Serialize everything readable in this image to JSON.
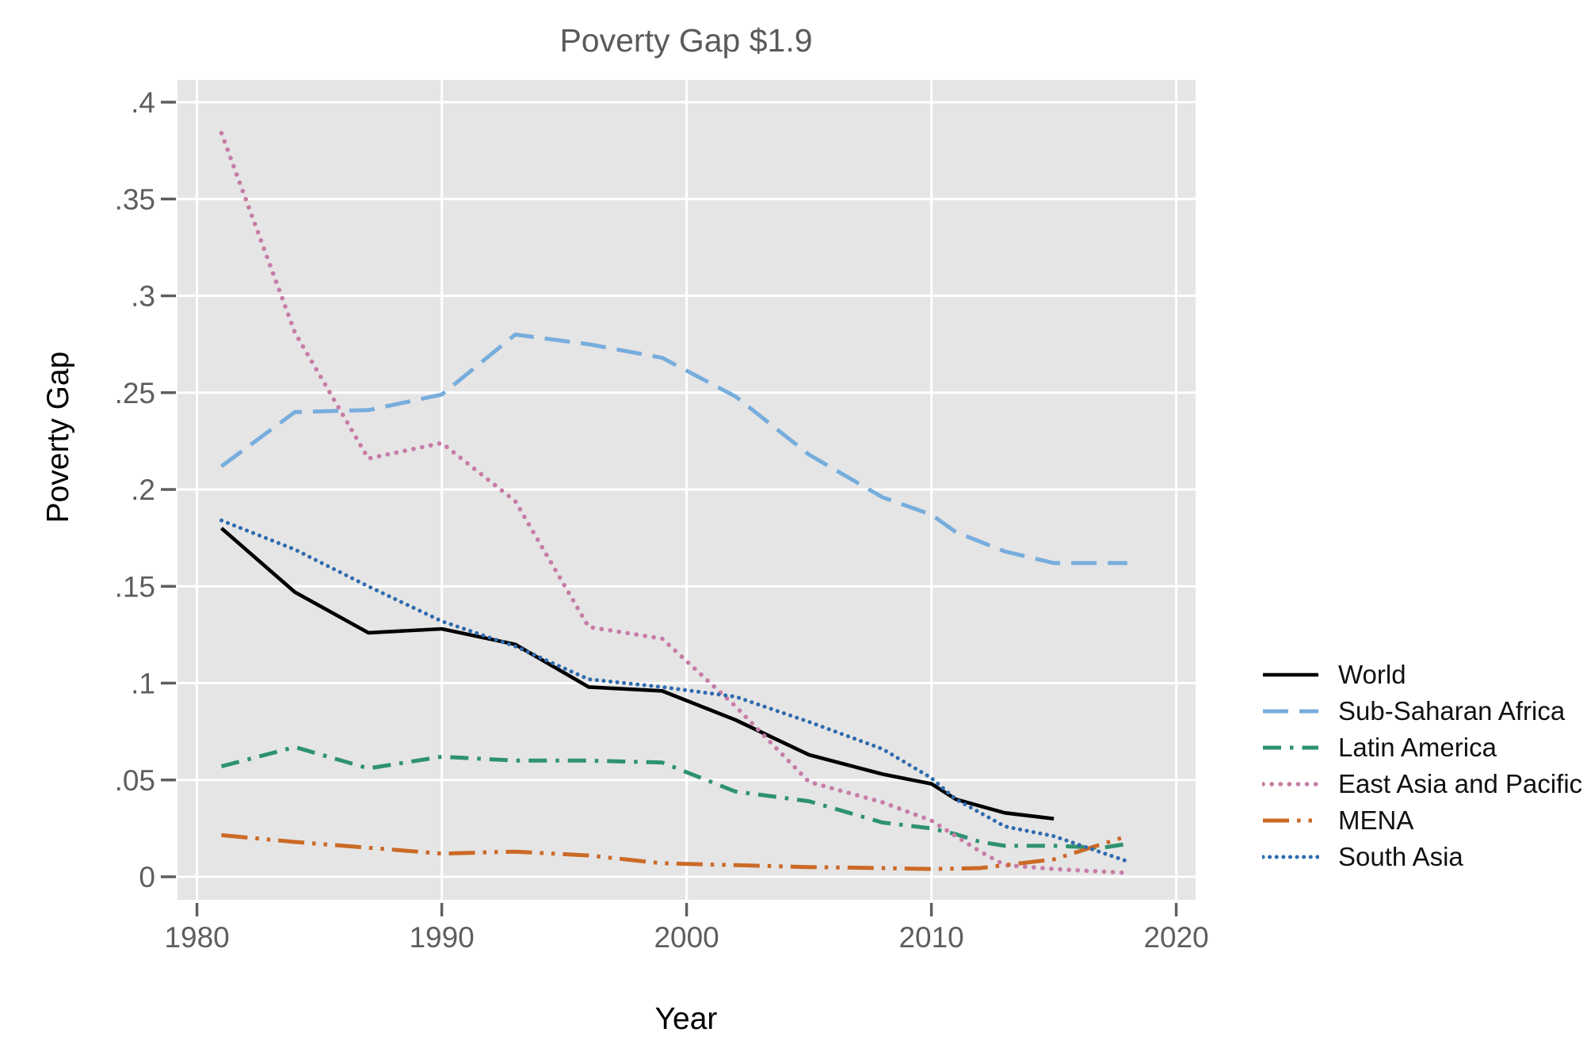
{
  "chart_data": {
    "type": "line",
    "title": "Poverty Gap $1.9",
    "xlabel": "Year",
    "ylabel": "Poverty Gap",
    "grid": true,
    "legend_position": "right-outside",
    "plot_background_color": "#e5e5e5",
    "gridline_color": "#ffffff",
    "axis_text_color": "#5e5e5e",
    "xlim": [
      1979.2,
      2020.8
    ],
    "ylim": [
      -0.012,
      0.425
    ],
    "x_ticks": [
      {
        "v": 1980,
        "label": "1980"
      },
      {
        "v": 1990,
        "label": "1990"
      },
      {
        "v": 2000,
        "label": "2000"
      },
      {
        "v": 2010,
        "label": "2010"
      },
      {
        "v": 2020,
        "label": "2020"
      }
    ],
    "y_ticks": [
      {
        "v": 0,
        "label": "0"
      },
      {
        "v": 0.05,
        "label": ".05"
      },
      {
        "v": 0.1,
        "label": ".1"
      },
      {
        "v": 0.15,
        "label": ".15"
      },
      {
        "v": 0.2,
        "label": ".2"
      },
      {
        "v": 0.25,
        "label": ".25"
      },
      {
        "v": 0.3,
        "label": ".3"
      },
      {
        "v": 0.35,
        "label": ".35"
      },
      {
        "v": 0.4,
        "label": ".4"
      }
    ],
    "series": [
      {
        "name": "World",
        "color": "#000000",
        "style": "solid",
        "points": [
          [
            1981,
            0.18
          ],
          [
            1984,
            0.147
          ],
          [
            1987,
            0.126
          ],
          [
            1990,
            0.128
          ],
          [
            1993,
            0.12
          ],
          [
            1996,
            0.098
          ],
          [
            1999,
            0.096
          ],
          [
            2002,
            0.081
          ],
          [
            2005,
            0.063
          ],
          [
            2008,
            0.053
          ],
          [
            2010,
            0.048
          ],
          [
            2011,
            0.04
          ],
          [
            2013,
            0.033
          ],
          [
            2015,
            0.03
          ]
        ]
      },
      {
        "name": "Sub-Saharan Africa",
        "color": "#76addc",
        "style": "longdash",
        "points": [
          [
            1981,
            0.212
          ],
          [
            1984,
            0.24
          ],
          [
            1987,
            0.241
          ],
          [
            1990,
            0.249
          ],
          [
            1993,
            0.28
          ],
          [
            1996,
            0.275
          ],
          [
            1999,
            0.268
          ],
          [
            2002,
            0.248
          ],
          [
            2005,
            0.218
          ],
          [
            2008,
            0.196
          ],
          [
            2010,
            0.187
          ],
          [
            2011,
            0.178
          ],
          [
            2012,
            0.173
          ],
          [
            2013,
            0.168
          ],
          [
            2015,
            0.162
          ],
          [
            2018,
            0.162
          ]
        ]
      },
      {
        "name": "Latin America",
        "color": "#2d9270",
        "style": "dashdot",
        "points": [
          [
            1981,
            0.057
          ],
          [
            1984,
            0.067
          ],
          [
            1987,
            0.056
          ],
          [
            1990,
            0.062
          ],
          [
            1993,
            0.06
          ],
          [
            1996,
            0.06
          ],
          [
            1999,
            0.059
          ],
          [
            2002,
            0.044
          ],
          [
            2005,
            0.039
          ],
          [
            2008,
            0.028
          ],
          [
            2010,
            0.025
          ],
          [
            2011,
            0.022
          ],
          [
            2012,
            0.018
          ],
          [
            2013,
            0.016
          ],
          [
            2015,
            0.016
          ],
          [
            2017,
            0.015
          ],
          [
            2018,
            0.017
          ]
        ]
      },
      {
        "name": "East Asia and Pacific",
        "color": "#c77ca6",
        "style": "dot",
        "points": [
          [
            1981,
            0.384
          ],
          [
            1984,
            0.281
          ],
          [
            1987,
            0.216
          ],
          [
            1990,
            0.224
          ],
          [
            1993,
            0.194
          ],
          [
            1996,
            0.129
          ],
          [
            1999,
            0.123
          ],
          [
            2002,
            0.088
          ],
          [
            2005,
            0.049
          ],
          [
            2008,
            0.0385
          ],
          [
            2010,
            0.029
          ],
          [
            2011,
            0.021
          ],
          [
            2012,
            0.013
          ],
          [
            2013,
            0.006
          ],
          [
            2015,
            0.004
          ],
          [
            2018,
            0.002
          ]
        ]
      },
      {
        "name": "MENA",
        "color": "#cb6a27",
        "style": "dashdotdot",
        "points": [
          [
            1981,
            0.0215
          ],
          [
            1984,
            0.018
          ],
          [
            1987,
            0.015
          ],
          [
            1990,
            0.012
          ],
          [
            1993,
            0.013
          ],
          [
            1996,
            0.011
          ],
          [
            1999,
            0.007
          ],
          [
            2002,
            0.006
          ],
          [
            2005,
            0.005
          ],
          [
            2008,
            0.0045
          ],
          [
            2010,
            0.004
          ],
          [
            2012,
            0.0045
          ],
          [
            2013,
            0.006
          ],
          [
            2015,
            0.009
          ],
          [
            2017,
            0.017
          ],
          [
            2018,
            0.021
          ]
        ]
      },
      {
        "name": "South Asia",
        "color": "#2f6bae",
        "style": "densedot",
        "points": [
          [
            1981,
            0.184
          ],
          [
            1984,
            0.169
          ],
          [
            1987,
            0.15
          ],
          [
            1990,
            0.132
          ],
          [
            1993,
            0.119
          ],
          [
            1996,
            0.102
          ],
          [
            1999,
            0.098
          ],
          [
            2002,
            0.093
          ],
          [
            2005,
            0.08
          ],
          [
            2008,
            0.066
          ],
          [
            2010,
            0.051
          ],
          [
            2011,
            0.04
          ],
          [
            2012,
            0.033
          ],
          [
            2013,
            0.026
          ],
          [
            2015,
            0.021
          ],
          [
            2018,
            0.008
          ]
        ]
      }
    ]
  }
}
